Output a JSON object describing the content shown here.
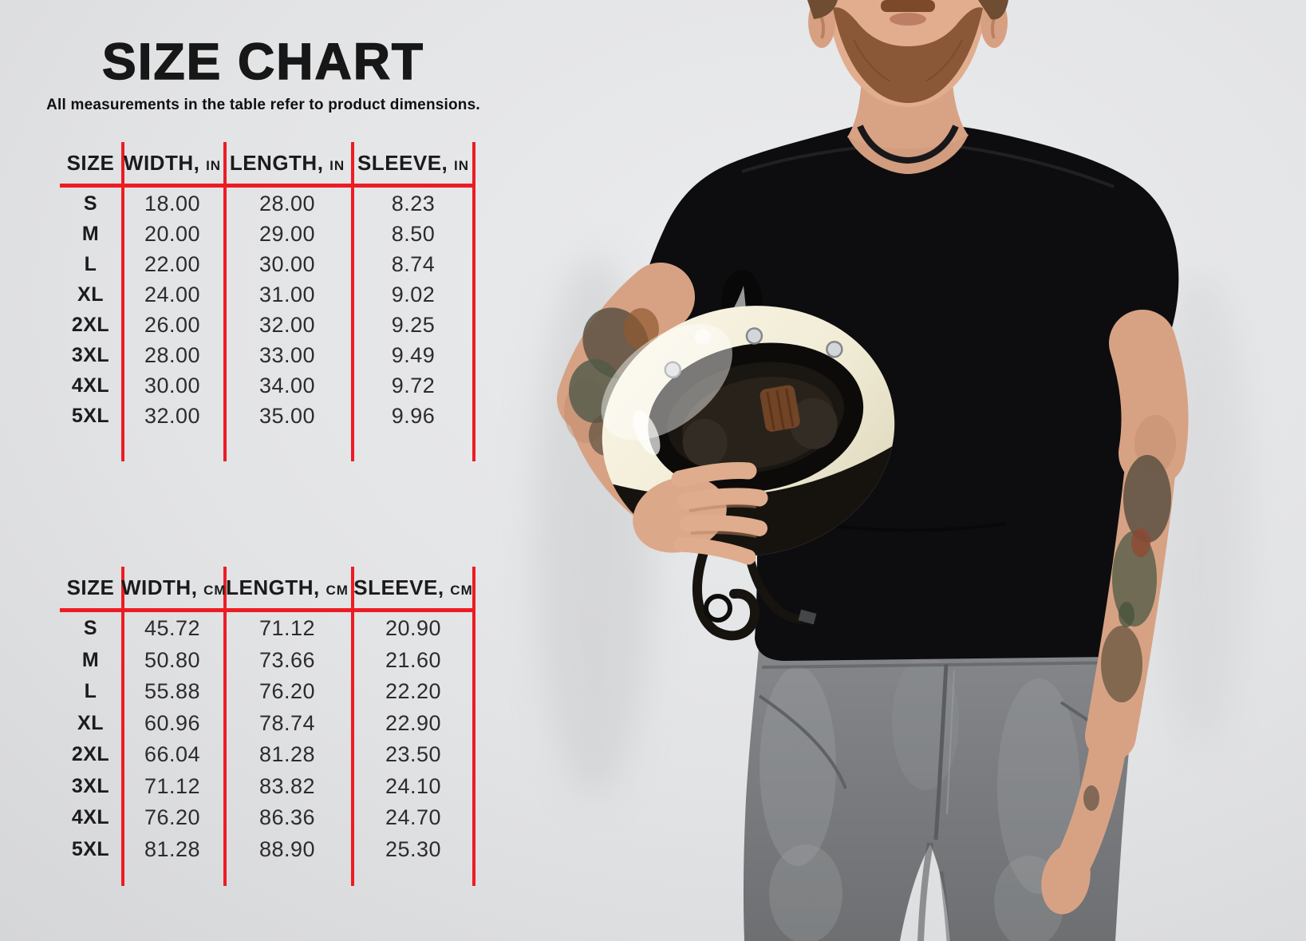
{
  "title": "SIZE CHART",
  "subtitle": "All measurements in the table refer to product dimensions.",
  "colors": {
    "accent": "#ed1c24",
    "text": "#1b1b1b",
    "background": "#e3e4e6"
  },
  "photo": {
    "alt": "Bearded man in a black t-shirt holding a cream full-face motorcycle helmet under his arm, wearing grey washed jeans, tattooed forearms"
  },
  "tables": [
    {
      "id": "inches",
      "columns": [
        {
          "label": "SIZE",
          "unit": ""
        },
        {
          "label": "WIDTH,",
          "unit": "IN"
        },
        {
          "label": "LENGTH,",
          "unit": "IN"
        },
        {
          "label": "SLEEVE,",
          "unit": "IN"
        }
      ],
      "rows": [
        [
          "S",
          "18.00",
          "28.00",
          "8.23"
        ],
        [
          "M",
          "20.00",
          "29.00",
          "8.50"
        ],
        [
          "L",
          "22.00",
          "30.00",
          "8.74"
        ],
        [
          "XL",
          "24.00",
          "31.00",
          "9.02"
        ],
        [
          "2XL",
          "26.00",
          "32.00",
          "9.25"
        ],
        [
          "3XL",
          "28.00",
          "33.00",
          "9.49"
        ],
        [
          "4XL",
          "30.00",
          "34.00",
          "9.72"
        ],
        [
          "5XL",
          "32.00",
          "35.00",
          "9.96"
        ]
      ]
    },
    {
      "id": "centimeters",
      "columns": [
        {
          "label": "SIZE",
          "unit": ""
        },
        {
          "label": "WIDTH,",
          "unit": "CM"
        },
        {
          "label": "LENGTH,",
          "unit": "CM"
        },
        {
          "label": "SLEEVE,",
          "unit": "CM"
        }
      ],
      "rows": [
        [
          "S",
          "45.72",
          "71.12",
          "20.90"
        ],
        [
          "M",
          "50.80",
          "73.66",
          "21.60"
        ],
        [
          "L",
          "55.88",
          "76.20",
          "22.20"
        ],
        [
          "XL",
          "60.96",
          "78.74",
          "22.90"
        ],
        [
          "2XL",
          "66.04",
          "81.28",
          "23.50"
        ],
        [
          "3XL",
          "71.12",
          "83.82",
          "24.10"
        ],
        [
          "4XL",
          "76.20",
          "86.36",
          "24.70"
        ],
        [
          "5XL",
          "81.28",
          "88.90",
          "25.30"
        ]
      ]
    }
  ]
}
